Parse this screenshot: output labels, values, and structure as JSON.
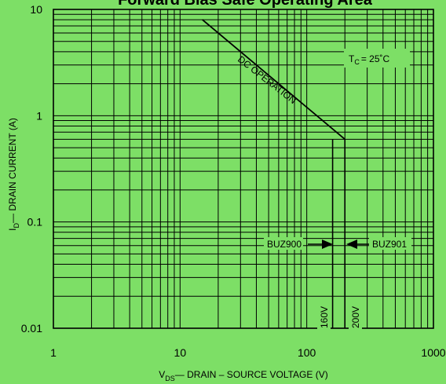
{
  "chart_data": {
    "type": "line",
    "title": "Forward Bias Safe Operating Area",
    "xlabel": "— DRAIN – SOURCE VOLTAGE (V)",
    "xlabel_symbol": "V",
    "xlabel_subscript": "DS",
    "ylabel": "— DRAIN CURRENT (A)",
    "ylabel_symbol": "I",
    "ylabel_subscript": "D",
    "x_scale": "log",
    "y_scale": "log",
    "xlim": [
      1,
      1000
    ],
    "ylim": [
      0.01,
      10
    ],
    "x_ticks": [
      "1",
      "10",
      "100",
      "1000"
    ],
    "y_ticks": [
      "10",
      "1",
      "0.1",
      "0.01"
    ],
    "grid": true,
    "series": [
      {
        "name": "DC OPERATION",
        "x": [
          15,
          200
        ],
        "y": [
          8,
          0.6
        ]
      }
    ],
    "annotations": {
      "temperature_symbol": "T",
      "temperature_subscript": "C",
      "temperature_value": "= 25˚C",
      "buz900": "BUZ900",
      "buz901": "BUZ901",
      "v160": "160V",
      "v200": "200V",
      "dc_operation": "DC OPERATION"
    },
    "voltage_limits": [
      160,
      200
    ]
  },
  "colors": {
    "background": "#7ddf66",
    "grid": "#000000",
    "curve": "#000000"
  }
}
